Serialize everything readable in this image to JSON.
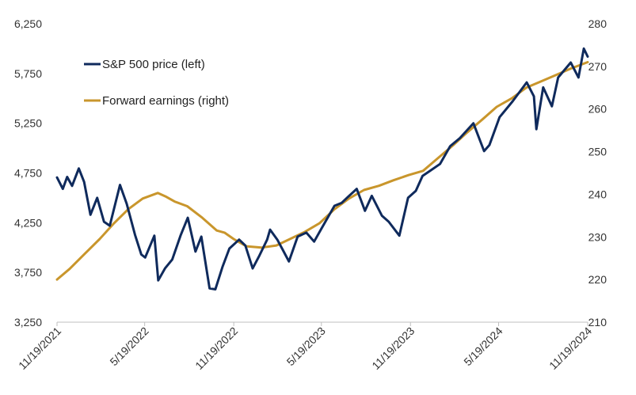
{
  "chart_data": {
    "type": "line",
    "title": "",
    "xlabel": "",
    "ylabel_left": "",
    "ylabel_right": "",
    "x_ticks": [
      "11/19/2021",
      "5/19/2022",
      "11/19/2022",
      "5/19/2023",
      "11/19/2023",
      "5/19/2024",
      "11/19/2024"
    ],
    "ylim_left": [
      3250,
      6250
    ],
    "yticks_left": [
      "3,250",
      "3,750",
      "4,250",
      "4,750",
      "5,250",
      "5,750",
      "6,250"
    ],
    "ylim_right": [
      210,
      280
    ],
    "yticks_right": [
      "210",
      "220",
      "230",
      "240",
      "250",
      "260",
      "270",
      "280"
    ],
    "grid": false,
    "legend_position": "top-left",
    "series": [
      {
        "name": "S&P 500 price (left)",
        "axis": "left",
        "color": "#0f2a5c",
        "x": [
          "11/19/2021",
          "12/1/2021",
          "12/10/2021",
          "12/20/2021",
          "1/3/2022",
          "1/14/2022",
          "1/27/2022",
          "2/10/2022",
          "2/24/2022",
          "3/8/2022",
          "3/29/2022",
          "4/12/2022",
          "4/29/2022",
          "5/12/2022",
          "5/20/2022",
          "6/8/2022",
          "6/16/2022",
          "6/30/2022",
          "7/15/2022",
          "8/1/2022",
          "8/16/2022",
          "9/1/2022",
          "9/13/2022",
          "9/30/2022",
          "10/12/2022",
          "10/27/2022",
          "11/10/2022",
          "11/30/2022",
          "12/13/2022",
          "12/28/2022",
          "1/10/2023",
          "1/27/2023",
          "2/2/2023",
          "2/17/2023",
          "3/1/2023",
          "3/13/2023",
          "3/31/2023",
          "4/18/2023",
          "5/4/2023",
          "5/19/2023",
          "6/15/2023",
          "6/30/2023",
          "7/13/2023",
          "7/31/2023",
          "8/17/2023",
          "8/31/2023",
          "9/21/2023",
          "10/5/2023",
          "10/27/2023",
          "11/14/2023",
          "11/30/2023",
          "12/14/2023",
          "12/29/2023",
          "1/19/2024",
          "2/9/2024",
          "2/29/2024",
          "3/28/2024",
          "4/19/2024",
          "4/30/2024",
          "5/21/2024",
          "6/17/2024",
          "7/16/2024",
          "7/31/2024",
          "8/5/2024",
          "8/19/2024",
          "9/6/2024",
          "9/19/2024",
          "10/15/2024",
          "10/31/2024",
          "11/11/2024",
          "11/19/2024"
        ],
        "values": [
          4705,
          4590,
          4710,
          4620,
          4795,
          4660,
          4330,
          4500,
          4260,
          4220,
          4630,
          4440,
          4130,
          3930,
          3900,
          4120,
          3670,
          3790,
          3880,
          4120,
          4300,
          3960,
          4110,
          3590,
          3580,
          3810,
          3990,
          4080,
          4020,
          3790,
          3910,
          4080,
          4180,
          4080,
          3970,
          3860,
          4110,
          4150,
          4060,
          4190,
          4420,
          4450,
          4510,
          4590,
          4370,
          4520,
          4320,
          4260,
          4120,
          4500,
          4570,
          4720,
          4770,
          4840,
          5020,
          5100,
          5250,
          4970,
          5030,
          5310,
          5470,
          5660,
          5520,
          5190,
          5610,
          5420,
          5710,
          5860,
          5710,
          6000,
          5920
        ]
      },
      {
        "name": "Forward earnings (right)",
        "axis": "right",
        "color": "#c9962c",
        "x": [
          "11/19/2021",
          "12/15/2021",
          "1/15/2022",
          "2/15/2022",
          "3/15/2022",
          "4/15/2022",
          "5/15/2022",
          "6/15/2022",
          "7/1/2022",
          "7/20/2022",
          "8/15/2022",
          "9/15/2022",
          "10/15/2022",
          "10/31/2022",
          "11/19/2022",
          "12/15/2022",
          "1/15/2023",
          "2/15/2023",
          "3/15/2023",
          "4/15/2023",
          "5/15/2023",
          "6/15/2023",
          "7/15/2023",
          "8/15/2023",
          "9/15/2023",
          "10/15/2023",
          "11/15/2023",
          "12/15/2023",
          "1/15/2024",
          "2/15/2024",
          "3/15/2024",
          "4/15/2024",
          "5/15/2024",
          "6/15/2024",
          "7/15/2024",
          "8/15/2024",
          "9/15/2024",
          "10/15/2024",
          "11/19/2024"
        ],
        "values": [
          220.0,
          222.5,
          226.0,
          229.5,
          233.0,
          236.5,
          239.0,
          240.3,
          239.5,
          238.3,
          237.2,
          234.5,
          231.5,
          231.0,
          229.5,
          227.8,
          227.5,
          228.0,
          229.5,
          231.2,
          233.2,
          236.5,
          239.0,
          241.0,
          242.0,
          243.3,
          244.5,
          245.5,
          248.5,
          251.5,
          254.5,
          257.5,
          260.5,
          262.5,
          265.0,
          266.5,
          268.0,
          269.5,
          271.0
        ]
      }
    ]
  }
}
